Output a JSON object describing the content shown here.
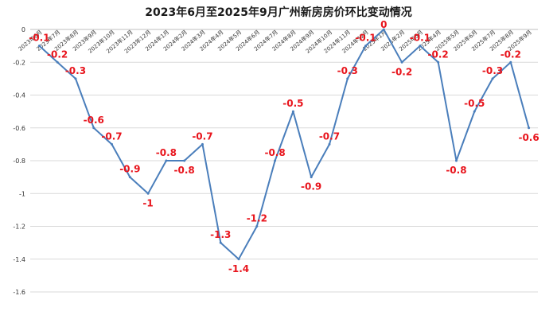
{
  "chart_data": {
    "type": "line",
    "title": "2023年6月至2025年9月广州新房房价环比变动情况",
    "xlabel": "",
    "ylabel": "",
    "ylim": [
      -1.6,
      0
    ],
    "yticks": [
      "0",
      "-0.2",
      "-0.4",
      "-0.6",
      "-0.8",
      "-1",
      "-1.2",
      "-1.4",
      "-1.6"
    ],
    "ytick_values": [
      0,
      -0.2,
      -0.4,
      -0.6,
      -0.8,
      -1,
      -1.2,
      -1.4,
      -1.6
    ],
    "grid": true,
    "legend": "none",
    "categories": [
      "2023年6月",
      "2023年7月",
      "2023年8月",
      "2023年9月",
      "2023年10月",
      "2023年11月",
      "2023年12月",
      "2024年1月",
      "2024年2月",
      "2024年3月",
      "2024年4月",
      "2024年5月",
      "2024年6月",
      "2024年7月",
      "2024年8月",
      "2024年9月",
      "2024年10月",
      "2024年11月",
      "2024年12月",
      "2025年1月",
      "2025年2月",
      "2025年3月",
      "2025年4月",
      "2025年5月",
      "2025年6月",
      "2025年7月",
      "2025年8月",
      "2025年9月"
    ],
    "values": [
      -0.1,
      -0.2,
      -0.3,
      -0.6,
      -0.7,
      -0.9,
      -1,
      -0.8,
      -0.8,
      -0.7,
      -1.3,
      -1.4,
      -1.2,
      -0.8,
      -0.5,
      -0.9,
      -0.7,
      -0.3,
      -0.1,
      0,
      -0.2,
      -0.1,
      -0.2,
      -0.8,
      -0.5,
      -0.3,
      -0.2,
      -0.6
    ],
    "data_labels": [
      "-0.1",
      "-0.2",
      "-0.3",
      "-0.6",
      "-0.7",
      "-0.9",
      "-1",
      "-0.8",
      "-0.8",
      "-0.7",
      "-1.3",
      "-1.4",
      "-1.2",
      "-0.8",
      "-0.5",
      "-0.9",
      "-0.7",
      "-0.3",
      "-0.1",
      "0",
      "-0.2",
      "-0.1",
      "-0.2",
      "-0.8",
      "-0.5",
      "-0.3",
      "-0.2",
      "-0.6"
    ],
    "colors": {
      "line": "#4a7ebb",
      "labels": "#e8141c",
      "grid": "#d9d9d9"
    }
  }
}
